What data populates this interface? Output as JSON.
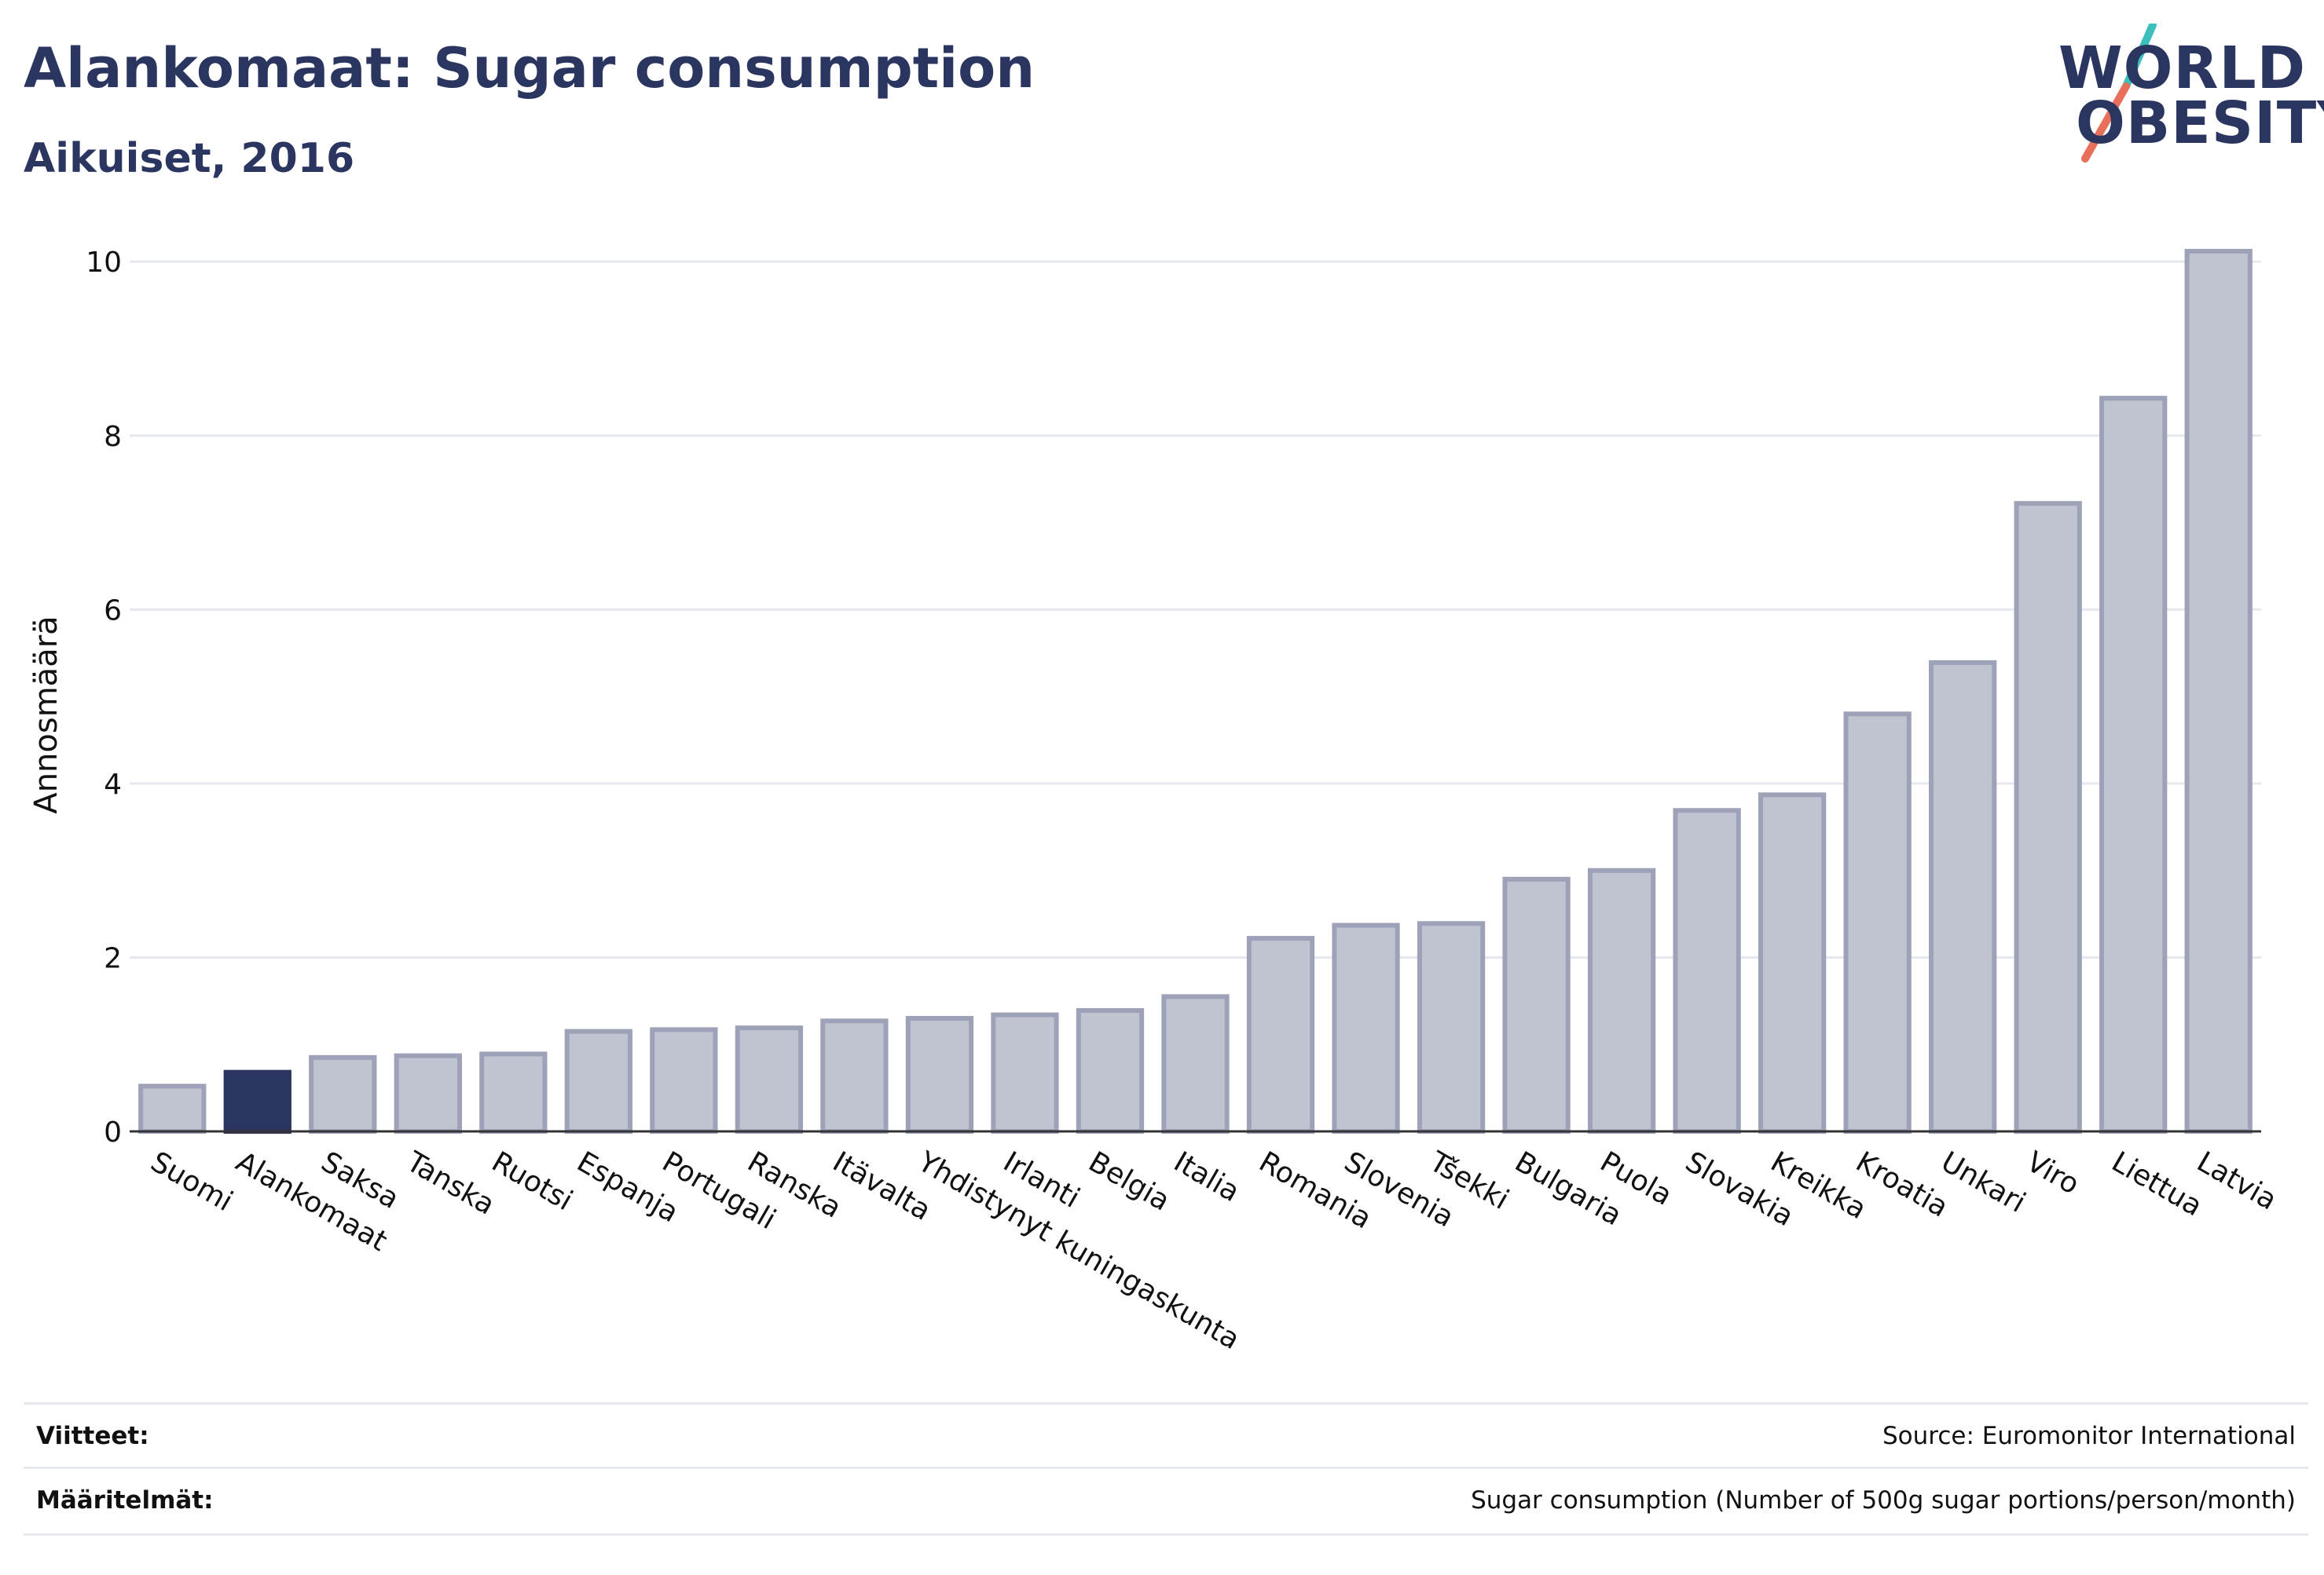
{
  "header": {
    "title": "Alankomaat: Sugar consumption",
    "subtitle": "Aikuiset, 2016"
  },
  "logo": {
    "line1": "WORLD",
    "line2": "OBESITY",
    "slash_colors": [
      "#3bbfbd",
      "#e8705a"
    ]
  },
  "colors": {
    "highlight": "#2b3660",
    "bar_fill": "#c0c3d0",
    "bar_stroke": "#9ea2b8",
    "grid": "#e6e8ef"
  },
  "chart_data": {
    "type": "bar",
    "title": "Alankomaat: Sugar consumption",
    "subtitle": "Aikuiset, 2016",
    "ylabel": "Annosmäärä",
    "xlabel": "",
    "ylim": [
      0,
      10.3
    ],
    "yticks": [
      0,
      2,
      4,
      6,
      8,
      10
    ],
    "grid": true,
    "highlight_category": "Alankomaat",
    "categories": [
      "Suomi",
      "Alankomaat",
      "Saksa",
      "Tanska",
      "Ruotsi",
      "Espanja",
      "Portugali",
      "Ranska",
      "Itävalta",
      "Yhdistynyt kuningaskunta",
      "Irlanti",
      "Belgia",
      "Italia",
      "Romania",
      "Slovenia",
      "Tšekki",
      "Bulgaria",
      "Puola",
      "Slovakia",
      "Kreikka",
      "Kroatia",
      "Unkari",
      "Viro",
      "Liettua",
      "Latvia"
    ],
    "values": [
      0.52,
      0.68,
      0.85,
      0.87,
      0.89,
      1.15,
      1.17,
      1.19,
      1.27,
      1.3,
      1.34,
      1.39,
      1.55,
      2.22,
      2.37,
      2.39,
      2.9,
      3.0,
      3.69,
      3.87,
      4.8,
      5.39,
      7.22,
      8.43,
      10.12
    ]
  },
  "footer": {
    "references_label": "Viitteet:",
    "references_value": "Source: Euromonitor International",
    "definitions_label": "Määritelmät:",
    "definitions_value": "Sugar consumption (Number of 500g sugar portions/person/month)"
  }
}
